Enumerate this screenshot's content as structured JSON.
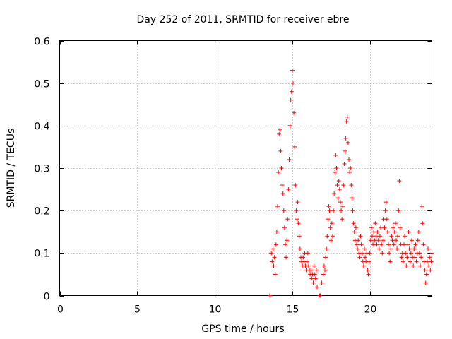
{
  "chart_data": {
    "type": "scatter",
    "title": "Day 252 of 2011, SRMTID for receiver ebre",
    "xlabel": "GPS time / hours",
    "ylabel": "SRMTID / TECUs",
    "xlim": [
      0,
      24
    ],
    "ylim": [
      0,
      0.6
    ],
    "xticks": [
      0,
      5,
      10,
      15,
      20
    ],
    "xtick_labels": [
      "0",
      "5",
      "10",
      "15",
      "20"
    ],
    "yticks": [
      0,
      0.1,
      0.2,
      0.3,
      0.4,
      0.5,
      0.6
    ],
    "ytick_labels": [
      "0",
      "0.1",
      "0.2",
      "0.3",
      "0.4",
      "0.5",
      "0.6"
    ],
    "grid": true,
    "marker": "+",
    "color": "#ff0000",
    "series": [
      {
        "name": "SRMTID",
        "points": [
          [
            13.55,
            0.0
          ],
          [
            16.75,
            0.0
          ],
          [
            16.8,
            0.0
          ],
          [
            13.65,
            0.1
          ],
          [
            13.7,
            0.08
          ],
          [
            13.75,
            0.11
          ],
          [
            13.8,
            0.07
          ],
          [
            13.85,
            0.09
          ],
          [
            13.9,
            0.05
          ],
          [
            13.95,
            0.12
          ],
          [
            14.0,
            0.15
          ],
          [
            14.05,
            0.21
          ],
          [
            14.1,
            0.29
          ],
          [
            14.15,
            0.38
          ],
          [
            14.2,
            0.39
          ],
          [
            14.25,
            0.34
          ],
          [
            14.3,
            0.3
          ],
          [
            14.35,
            0.26
          ],
          [
            14.4,
            0.24
          ],
          [
            14.45,
            0.2
          ],
          [
            14.5,
            0.16
          ],
          [
            14.55,
            0.12
          ],
          [
            14.6,
            0.09
          ],
          [
            14.65,
            0.13
          ],
          [
            14.7,
            0.18
          ],
          [
            14.75,
            0.25
          ],
          [
            14.8,
            0.32
          ],
          [
            14.85,
            0.4
          ],
          [
            14.9,
            0.46
          ],
          [
            14.95,
            0.48
          ],
          [
            15.0,
            0.53
          ],
          [
            15.05,
            0.5
          ],
          [
            15.1,
            0.43
          ],
          [
            15.15,
            0.35
          ],
          [
            15.2,
            0.26
          ],
          [
            15.25,
            0.2
          ],
          [
            15.3,
            0.18
          ],
          [
            15.35,
            0.22
          ],
          [
            15.4,
            0.17
          ],
          [
            15.45,
            0.14
          ],
          [
            15.5,
            0.11
          ],
          [
            15.55,
            0.09
          ],
          [
            15.6,
            0.08
          ],
          [
            15.65,
            0.07
          ],
          [
            15.7,
            0.09
          ],
          [
            15.75,
            0.08
          ],
          [
            15.8,
            0.1
          ],
          [
            15.85,
            0.07
          ],
          [
            15.9,
            0.06
          ],
          [
            15.95,
            0.08
          ],
          [
            16.0,
            0.1
          ],
          [
            16.05,
            0.07
          ],
          [
            16.1,
            0.06
          ],
          [
            16.15,
            0.05
          ],
          [
            16.2,
            0.06
          ],
          [
            16.25,
            0.04
          ],
          [
            16.3,
            0.05
          ],
          [
            16.35,
            0.03
          ],
          [
            16.4,
            0.07
          ],
          [
            16.45,
            0.05
          ],
          [
            16.5,
            0.04
          ],
          [
            16.55,
            0.06
          ],
          [
            16.6,
            0.02
          ],
          [
            16.9,
            0.03
          ],
          [
            17.0,
            0.05
          ],
          [
            17.05,
            0.07
          ],
          [
            17.1,
            0.06
          ],
          [
            17.15,
            0.09
          ],
          [
            17.2,
            0.11
          ],
          [
            17.25,
            0.14
          ],
          [
            17.3,
            0.18
          ],
          [
            17.35,
            0.21
          ],
          [
            17.4,
            0.2
          ],
          [
            17.45,
            0.16
          ],
          [
            17.5,
            0.13
          ],
          [
            17.55,
            0.17
          ],
          [
            17.6,
            0.14
          ],
          [
            17.65,
            0.2
          ],
          [
            17.7,
            0.24
          ],
          [
            17.75,
            0.29
          ],
          [
            17.8,
            0.33
          ],
          [
            17.85,
            0.3
          ],
          [
            17.9,
            0.26
          ],
          [
            17.95,
            0.23
          ],
          [
            18.0,
            0.27
          ],
          [
            18.05,
            0.25
          ],
          [
            18.1,
            0.22
          ],
          [
            18.15,
            0.2
          ],
          [
            18.2,
            0.18
          ],
          [
            18.25,
            0.21
          ],
          [
            18.3,
            0.26
          ],
          [
            18.35,
            0.31
          ],
          [
            18.4,
            0.34
          ],
          [
            18.45,
            0.37
          ],
          [
            18.5,
            0.41
          ],
          [
            18.55,
            0.42
          ],
          [
            18.6,
            0.36
          ],
          [
            18.65,
            0.32
          ],
          [
            18.7,
            0.29
          ],
          [
            18.75,
            0.3
          ],
          [
            18.8,
            0.26
          ],
          [
            18.85,
            0.23
          ],
          [
            18.9,
            0.2
          ],
          [
            18.95,
            0.17
          ],
          [
            19.0,
            0.15
          ],
          [
            19.05,
            0.13
          ],
          [
            19.1,
            0.16
          ],
          [
            19.15,
            0.12
          ],
          [
            19.2,
            0.11
          ],
          [
            19.25,
            0.13
          ],
          [
            19.3,
            0.1
          ],
          [
            19.35,
            0.09
          ],
          [
            19.4,
            0.14
          ],
          [
            19.45,
            0.12
          ],
          [
            19.5,
            0.1
          ],
          [
            19.55,
            0.08
          ],
          [
            19.6,
            0.07
          ],
          [
            19.65,
            0.11
          ],
          [
            19.7,
            0.09
          ],
          [
            19.75,
            0.08
          ],
          [
            19.8,
            0.1
          ],
          [
            19.85,
            0.06
          ],
          [
            19.9,
            0.05
          ],
          [
            19.95,
            0.08
          ],
          [
            20.0,
            0.1
          ],
          [
            20.05,
            0.13
          ],
          [
            20.1,
            0.16
          ],
          [
            20.15,
            0.14
          ],
          [
            20.2,
            0.12
          ],
          [
            20.25,
            0.15
          ],
          [
            20.3,
            0.13
          ],
          [
            20.35,
            0.17
          ],
          [
            20.4,
            0.14
          ],
          [
            20.45,
            0.12
          ],
          [
            20.5,
            0.15
          ],
          [
            20.55,
            0.13
          ],
          [
            20.6,
            0.11
          ],
          [
            20.65,
            0.14
          ],
          [
            20.7,
            0.16
          ],
          [
            20.75,
            0.12
          ],
          [
            20.8,
            0.1
          ],
          [
            20.85,
            0.13
          ],
          [
            20.9,
            0.18
          ],
          [
            20.95,
            0.16
          ],
          [
            21.0,
            0.2
          ],
          [
            21.05,
            0.22
          ],
          [
            21.1,
            0.18
          ],
          [
            21.15,
            0.15
          ],
          [
            21.2,
            0.12
          ],
          [
            21.25,
            0.1
          ],
          [
            21.3,
            0.08
          ],
          [
            21.35,
            0.11
          ],
          [
            21.4,
            0.14
          ],
          [
            21.45,
            0.13
          ],
          [
            21.5,
            0.16
          ],
          [
            21.55,
            0.12
          ],
          [
            21.6,
            0.15
          ],
          [
            21.65,
            0.17
          ],
          [
            21.7,
            0.13
          ],
          [
            21.75,
            0.11
          ],
          [
            21.8,
            0.14
          ],
          [
            21.85,
            0.2
          ],
          [
            21.9,
            0.27
          ],
          [
            21.95,
            0.16
          ],
          [
            22.0,
            0.12
          ],
          [
            22.05,
            0.09
          ],
          [
            22.1,
            0.1
          ],
          [
            22.15,
            0.08
          ],
          [
            22.2,
            0.12
          ],
          [
            22.25,
            0.14
          ],
          [
            22.3,
            0.1
          ],
          [
            22.35,
            0.07
          ],
          [
            22.4,
            0.09
          ],
          [
            22.45,
            0.12
          ],
          [
            22.5,
            0.15
          ],
          [
            22.55,
            0.11
          ],
          [
            22.6,
            0.08
          ],
          [
            22.65,
            0.1
          ],
          [
            22.7,
            0.13
          ],
          [
            22.75,
            0.09
          ],
          [
            22.8,
            0.07
          ],
          [
            22.85,
            0.11
          ],
          [
            22.9,
            0.09
          ],
          [
            22.95,
            0.12
          ],
          [
            23.0,
            0.08
          ],
          [
            23.05,
            0.1
          ],
          [
            23.1,
            0.13
          ],
          [
            23.15,
            0.15
          ],
          [
            23.2,
            0.1
          ],
          [
            23.25,
            0.07
          ],
          [
            23.3,
            0.09
          ],
          [
            23.35,
            0.21
          ],
          [
            23.4,
            0.17
          ],
          [
            23.45,
            0.12
          ],
          [
            23.5,
            0.08
          ],
          [
            23.55,
            0.06
          ],
          [
            23.6,
            0.03
          ],
          [
            23.65,
            0.05
          ],
          [
            23.7,
            0.08
          ],
          [
            23.75,
            0.11
          ],
          [
            23.8,
            0.07
          ],
          [
            23.85,
            0.09
          ],
          [
            23.9,
            0.06
          ],
          [
            23.95,
            0.08
          ],
          [
            24.0,
            0.1
          ]
        ]
      }
    ]
  }
}
